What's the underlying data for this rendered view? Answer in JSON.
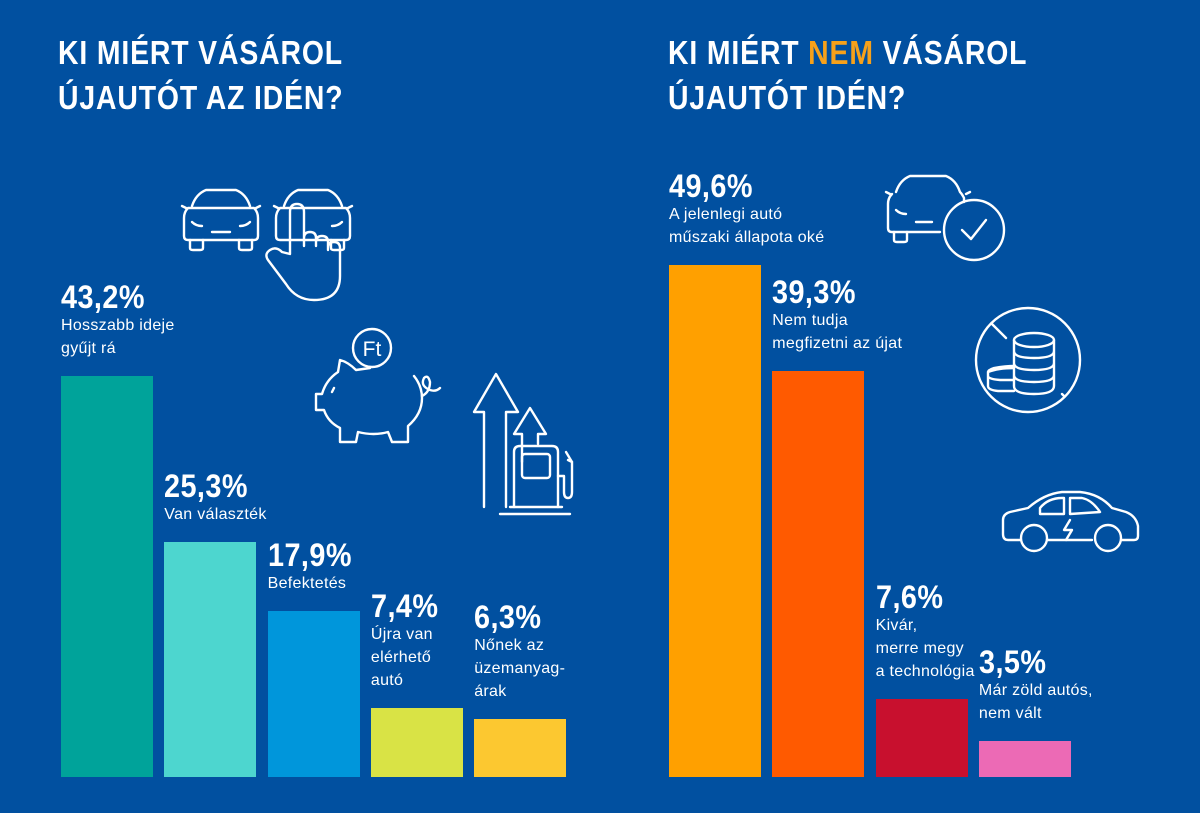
{
  "chart_data": [
    {
      "type": "bar",
      "title": [
        "KI MIÉRT VÁSÁROL",
        "ÚJAUTÓT AZ IDÉN?"
      ],
      "unit": "%",
      "categories": [
        "Hosszabb ideje gyűjt rá",
        "Van választék",
        "Befektetés",
        "Újra van elérhető autó",
        "Nőnek az üzemanyag-árak"
      ],
      "values": [
        43.2,
        25.3,
        17.9,
        7.4,
        6.3
      ],
      "value_labels": [
        "43,2%",
        "25,3%",
        "17,9%",
        "7,4%",
        "6,3%"
      ],
      "descriptions": [
        "Hosszabb ideje\ngyűjt rá",
        "Van választék",
        "Befektetés",
        "Újra van\nelérhető\nautó",
        "Nőnek az\nüzemanyag-\nárak"
      ],
      "colors": [
        "#00a39a",
        "#4dd6cf",
        "#0096db",
        "#d9e345",
        "#fcc830"
      ],
      "xlabel": "",
      "ylabel": "",
      "grid": false,
      "legend": "none"
    },
    {
      "type": "bar",
      "title_parts": [
        "KI MIÉRT ",
        "NEM",
        " VÁSÁROL"
      ],
      "title_line2": "ÚJAUTÓT IDÉN?",
      "highlight_color": "#f7a11a",
      "unit": "%",
      "categories": [
        "A jelenlegi autó műszaki állapota oké",
        "Nem tudja megfizetni az újat",
        "Kivár, merre megy a technológia",
        "Már zöld autós, nem vált"
      ],
      "values": [
        49.6,
        39.3,
        7.6,
        3.5
      ],
      "value_labels": [
        "49,6%",
        "39,3%",
        "7,6%",
        "3,5%"
      ],
      "descriptions": [
        "A jelenlegi autó\nműszaki állapota oké",
        "Nem tudja\nmegfizetni az újat",
        "Kivár,\nmerre megy\na technológia",
        "Már zöld autós,\nnem vált"
      ],
      "colors": [
        "#ffa000",
        "#ff5a00",
        "#c8102e",
        "#ec6ab5"
      ],
      "xlabel": "",
      "ylabel": "",
      "grid": false,
      "legend": "none"
    }
  ],
  "icons": {
    "left": [
      "two-cars-hand-select-icon",
      "piggy-bank-forint-icon",
      "fuel-price-rising-icon"
    ],
    "right": [
      "car-checkmark-icon",
      "no-money-coins-icon",
      "electric-car-icon"
    ],
    "forint_symbol": "Ft"
  }
}
